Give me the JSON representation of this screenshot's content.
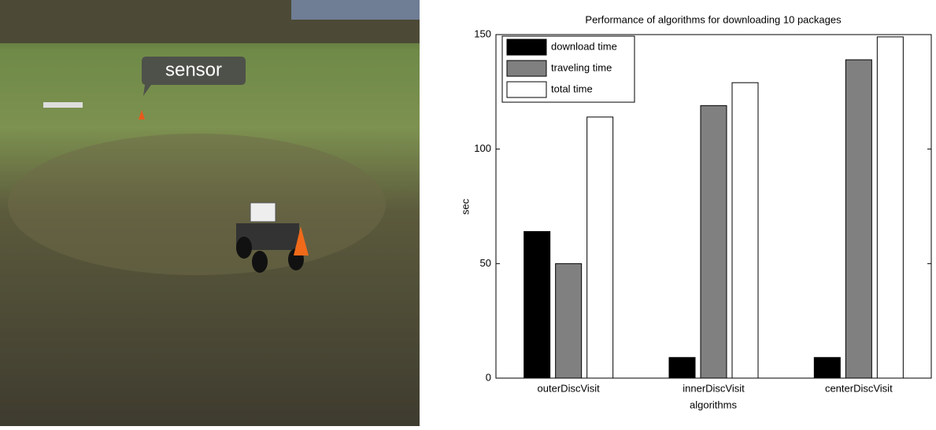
{
  "image": {
    "label": "sensor"
  },
  "chart_data": {
    "type": "bar",
    "title": "Performance of algorithms for downloading 10 packages",
    "x_label": "algorithms",
    "y_label": "sec",
    "categories": [
      "outerDiscVisit",
      "innerDiscVisit",
      "centerDiscVisit"
    ],
    "series": [
      {
        "name": "download time",
        "color": "#000000",
        "values": [
          64,
          9,
          9
        ]
      },
      {
        "name": "traveling time",
        "color": "#808080",
        "values": [
          50,
          119,
          139
        ]
      },
      {
        "name": "total time",
        "color": "#ffffff",
        "values": [
          114,
          129,
          149
        ]
      }
    ],
    "ylim": [
      0,
      150
    ],
    "yticks": [
      0,
      50,
      100,
      150
    ],
    "legend": "upper left"
  }
}
